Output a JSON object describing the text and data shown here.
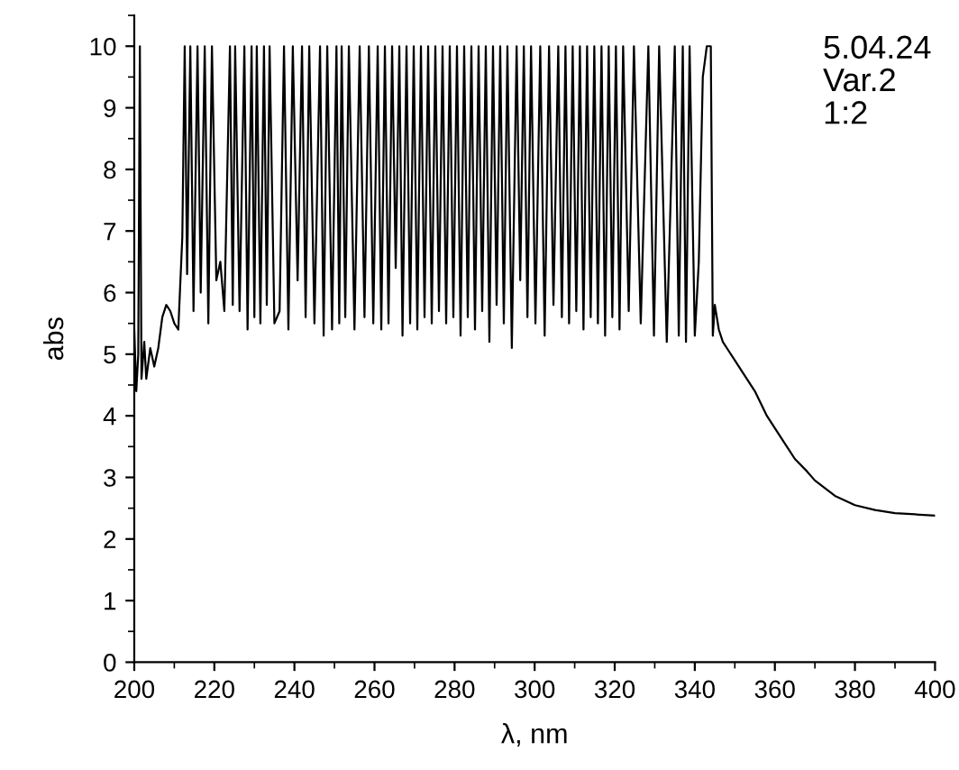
{
  "chart_data": {
    "type": "line",
    "xlabel": "λ, nm",
    "ylabel": "abs",
    "annotations": [
      "5.04.24\nVar.2\n1:2"
    ],
    "xlim": [
      200,
      400
    ],
    "xticks": [
      200,
      220,
      240,
      260,
      280,
      300,
      320,
      340,
      360,
      380,
      400
    ],
    "ylim": [
      0,
      10.5
    ],
    "yticks": [
      0,
      1,
      2,
      3,
      4,
      5,
      6,
      7,
      8,
      9,
      10
    ],
    "marker": "none",
    "line_style": "solid",
    "series": [
      {
        "color": "#000000",
        "x": [
          200,
          200.5,
          201,
          201.4,
          201.8,
          202.5,
          203,
          204,
          205,
          206,
          207,
          208,
          209,
          210,
          211,
          212,
          212.6,
          213.2,
          214,
          214.8,
          215.8,
          216.6,
          217.6,
          218.5,
          219.4,
          220.5,
          221.5,
          222.5,
          223.9,
          224.6,
          225.2,
          226.3,
          227.5,
          228.3,
          229.3,
          230,
          230.6,
          231.5,
          232.4,
          233.1,
          233.8,
          235,
          236.3,
          237.4,
          238.5,
          239.6,
          240.8,
          241.9,
          242.8,
          243.7,
          245,
          246.4,
          247.3,
          248.2,
          249.4,
          250.5,
          251.2,
          251.8,
          252.7,
          253.6,
          255,
          256.3,
          257.5,
          258.6,
          259.7,
          260.8,
          261.7,
          262.6,
          263.5,
          264.4,
          265.3,
          266.2,
          267,
          268,
          268.9,
          269.8,
          270.7,
          271.6,
          272.5,
          273.4,
          274.3,
          275.2,
          276.1,
          277,
          277.9,
          278.8,
          279.7,
          280.6,
          281.5,
          282.4,
          283.3,
          284.2,
          285.1,
          286,
          286.9,
          287.8,
          288.7,
          289.6,
          290.5,
          291.4,
          292.3,
          293.2,
          294.3,
          295.5,
          296.4,
          297.3,
          298.2,
          299.1,
          300.2,
          301.4,
          302.5,
          303.6,
          304.7,
          305.9,
          306.8,
          307.7,
          308.6,
          309.5,
          310.4,
          311.3,
          312.2,
          313.1,
          314,
          314.9,
          315.8,
          316.7,
          317.6,
          318.5,
          319.4,
          320.3,
          321.2,
          322.1,
          323.5,
          324.8,
          326.5,
          328.4,
          329.8,
          331.1,
          333,
          335,
          336,
          337,
          337.8,
          338.7,
          340,
          341,
          342,
          343,
          344,
          344.5,
          345,
          346,
          347,
          348,
          350,
          352,
          355,
          358,
          360,
          363,
          365,
          368,
          370,
          375,
          380,
          385,
          390,
          395,
          400
        ],
        "values": [
          5.4,
          4.4,
          5.0,
          10,
          4.6,
          5.2,
          4.6,
          5.1,
          4.8,
          5.1,
          5.6,
          5.8,
          5.7,
          5.5,
          5.4,
          6.9,
          10,
          6.3,
          10,
          5.7,
          10,
          6.0,
          10,
          5.5,
          10,
          6.2,
          6.5,
          5.7,
          10,
          5.8,
          10,
          5.7,
          10,
          5.4,
          10,
          5.6,
          10,
          5.5,
          10,
          5.8,
          10,
          5.5,
          5.7,
          10,
          5.4,
          10,
          6.2,
          10,
          5.6,
          10,
          5.5,
          10,
          5.3,
          10,
          5.4,
          10,
          5.5,
          10,
          5.6,
          10,
          5.4,
          10,
          5.6,
          10,
          5.5,
          10,
          5.4,
          10,
          5.5,
          10,
          6.4,
          10,
          5.3,
          10,
          5.5,
          10,
          5.4,
          10,
          5.6,
          10,
          5.5,
          10,
          5.7,
          10,
          5.5,
          10,
          5.6,
          10,
          5.3,
          10,
          5.6,
          10,
          5.4,
          10,
          5.7,
          10,
          5.2,
          10,
          5.8,
          10,
          5.5,
          10,
          5.1,
          10,
          6.2,
          10,
          5.6,
          10,
          5.5,
          10,
          5.3,
          10,
          5.8,
          10,
          5.6,
          10,
          5.5,
          10,
          5.7,
          10,
          5.4,
          10,
          5.6,
          10,
          5.5,
          10,
          5.3,
          10,
          5.6,
          10,
          5.4,
          10,
          5.7,
          10,
          5.5,
          10,
          5.3,
          10,
          5.2,
          10,
          5.3,
          10,
          5.2,
          10,
          5.3,
          6.5,
          9.5,
          10,
          10,
          5.3,
          5.8,
          5.4,
          5.2,
          5.1,
          4.9,
          4.7,
          4.4,
          4.0,
          3.8,
          3.5,
          3.3,
          3.1,
          2.95,
          2.7,
          2.55,
          2.47,
          2.42,
          2.4,
          2.38
        ]
      }
    ]
  }
}
